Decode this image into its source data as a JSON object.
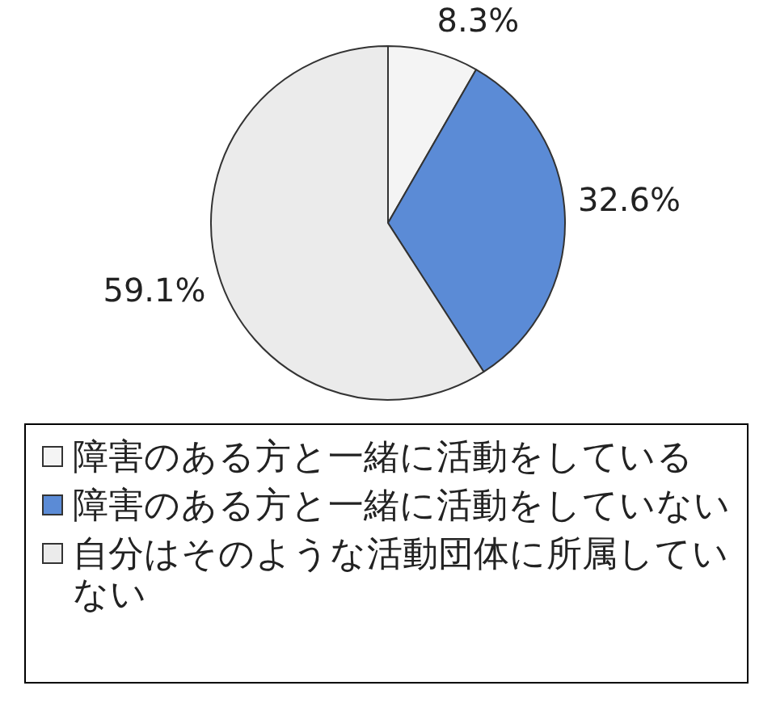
{
  "chart_data": {
    "type": "pie",
    "categories": [
      "障害のある方と一緒に活動をしている",
      "障害のある方と一緒に活動をしていない",
      "自分はそのような活動団体に所属していない"
    ],
    "values": [
      8.3,
      32.6,
      59.1
    ],
    "colors": [
      "#f4f4f4",
      "#5b8bd6",
      "#ebebeb"
    ],
    "value_labels": [
      "8.3%",
      "32.6%",
      "59.1%"
    ],
    "legend": "bottom"
  }
}
